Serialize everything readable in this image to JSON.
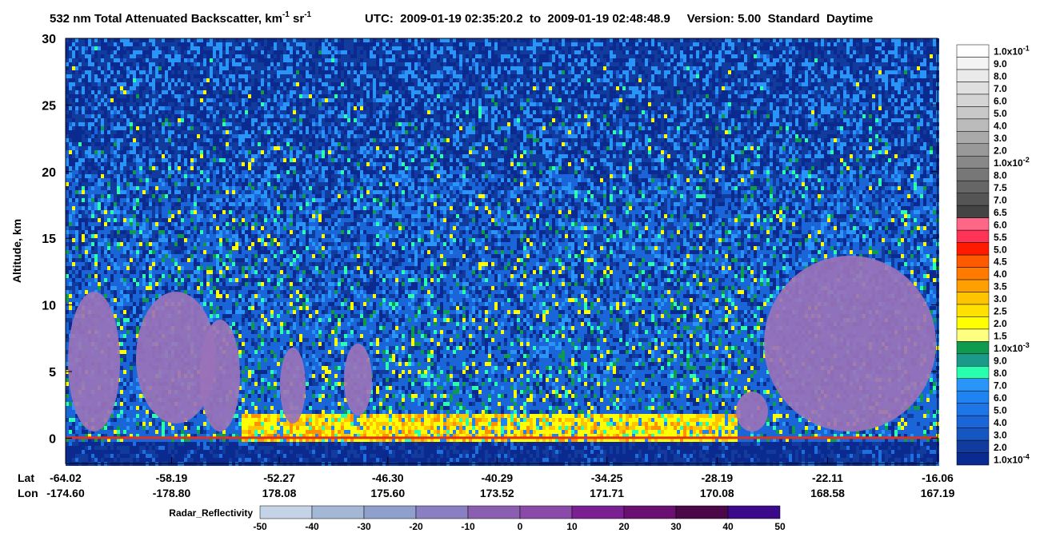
{
  "chart_data": {
    "type": "heatmap",
    "title": [
      {
        "text": "532 nm Total Attenuated Backscatter, km"
      },
      {
        "sup": "-1"
      },
      {
        "text": " sr"
      },
      {
        "sup": "-1"
      }
    ],
    "subtitle": "UTC:  2009-01-19 02:35:20.2  to  2009-01-19 02:48:48.9     Version: 5.00  Standard  Daytime",
    "y_label": "Altitude, km",
    "ylim": [
      -1.9,
      30
    ],
    "yticks": [
      0,
      5,
      10,
      15,
      20,
      25,
      30
    ],
    "x_label": "Lat",
    "xlim": [
      -64.02,
      -16.06
    ],
    "xticks": [
      -64.02,
      -58.19,
      -52.27,
      {
        "value": -46.3,
        "label": "-46.30"
      },
      -40.29,
      -34.25,
      -28.19,
      -22.11,
      -16.06
    ],
    "x2_label": "Lon",
    "x2ticks": [
      {
        "value": -174.6,
        "label": "-174.60"
      },
      {
        "value": -178.8,
        "label": "-178.80"
      },
      178.08,
      {
        "value": 175.6,
        "label": "175.60"
      },
      173.52,
      171.71,
      170.08,
      168.58,
      167.19
    ],
    "colorbar": {
      "labels": [
        {
          "text": "1.0x10",
          "sup": "-4"
        },
        "2.0",
        "3.0",
        "4.0",
        "5.0",
        "6.0",
        "7.0",
        "8.0",
        "9.0",
        {
          "text": "1.0x10",
          "sup": "-3"
        },
        "1.5",
        "2.0",
        "2.5",
        "3.0",
        "3.5",
        "4.0",
        "4.5",
        "5.0",
        "5.5",
        "6.0",
        "6.5",
        "7.0",
        "7.5",
        "8.0",
        {
          "text": "1.0x10",
          "sup": "-2"
        },
        "2.0",
        "3.0",
        "4.0",
        "5.0",
        "6.0",
        "7.0",
        "8.0",
        "9.0",
        {
          "text": "1.0x10",
          "sup": "-1"
        }
      ],
      "colors": [
        "#0b2a8f",
        "#123b9e",
        "#1656c0",
        "#1a66d8",
        "#1e75e8",
        "#1f84f2",
        "#2a95f8",
        "#2affb0",
        "#1a9a8a",
        "#0f9a50",
        "#ffff80",
        "#ffff00",
        "#ffe000",
        "#ffc400",
        "#ffa000",
        "#ff7a00",
        "#ff5a00",
        "#ff1a00",
        "#ff3355",
        "#ff6688",
        "#444444",
        "#555555",
        "#666666",
        "#777777",
        "#888888",
        "#999999",
        "#aaaaaa",
        "#bbbbbb",
        "#c8c8c8",
        "#d4d4d4",
        "#e0e0e0",
        "#eaeaea",
        "#f4f4f4",
        "#ffffff"
      ]
    },
    "radar_colorbar": {
      "label": "Radar_Reflectivity",
      "ticks": [
        -50,
        -40,
        -30,
        -20,
        -10,
        0,
        10,
        20,
        30,
        40,
        50
      ],
      "colors": [
        "#c4d4e6",
        "#a4b8d6",
        "#8fa0cc",
        "#8a7fc2",
        "#8a5fb0",
        "#8a4aa8",
        "#7a2090",
        "#6a1070",
        "#4a0848",
        "#3a0a8a"
      ]
    }
  }
}
